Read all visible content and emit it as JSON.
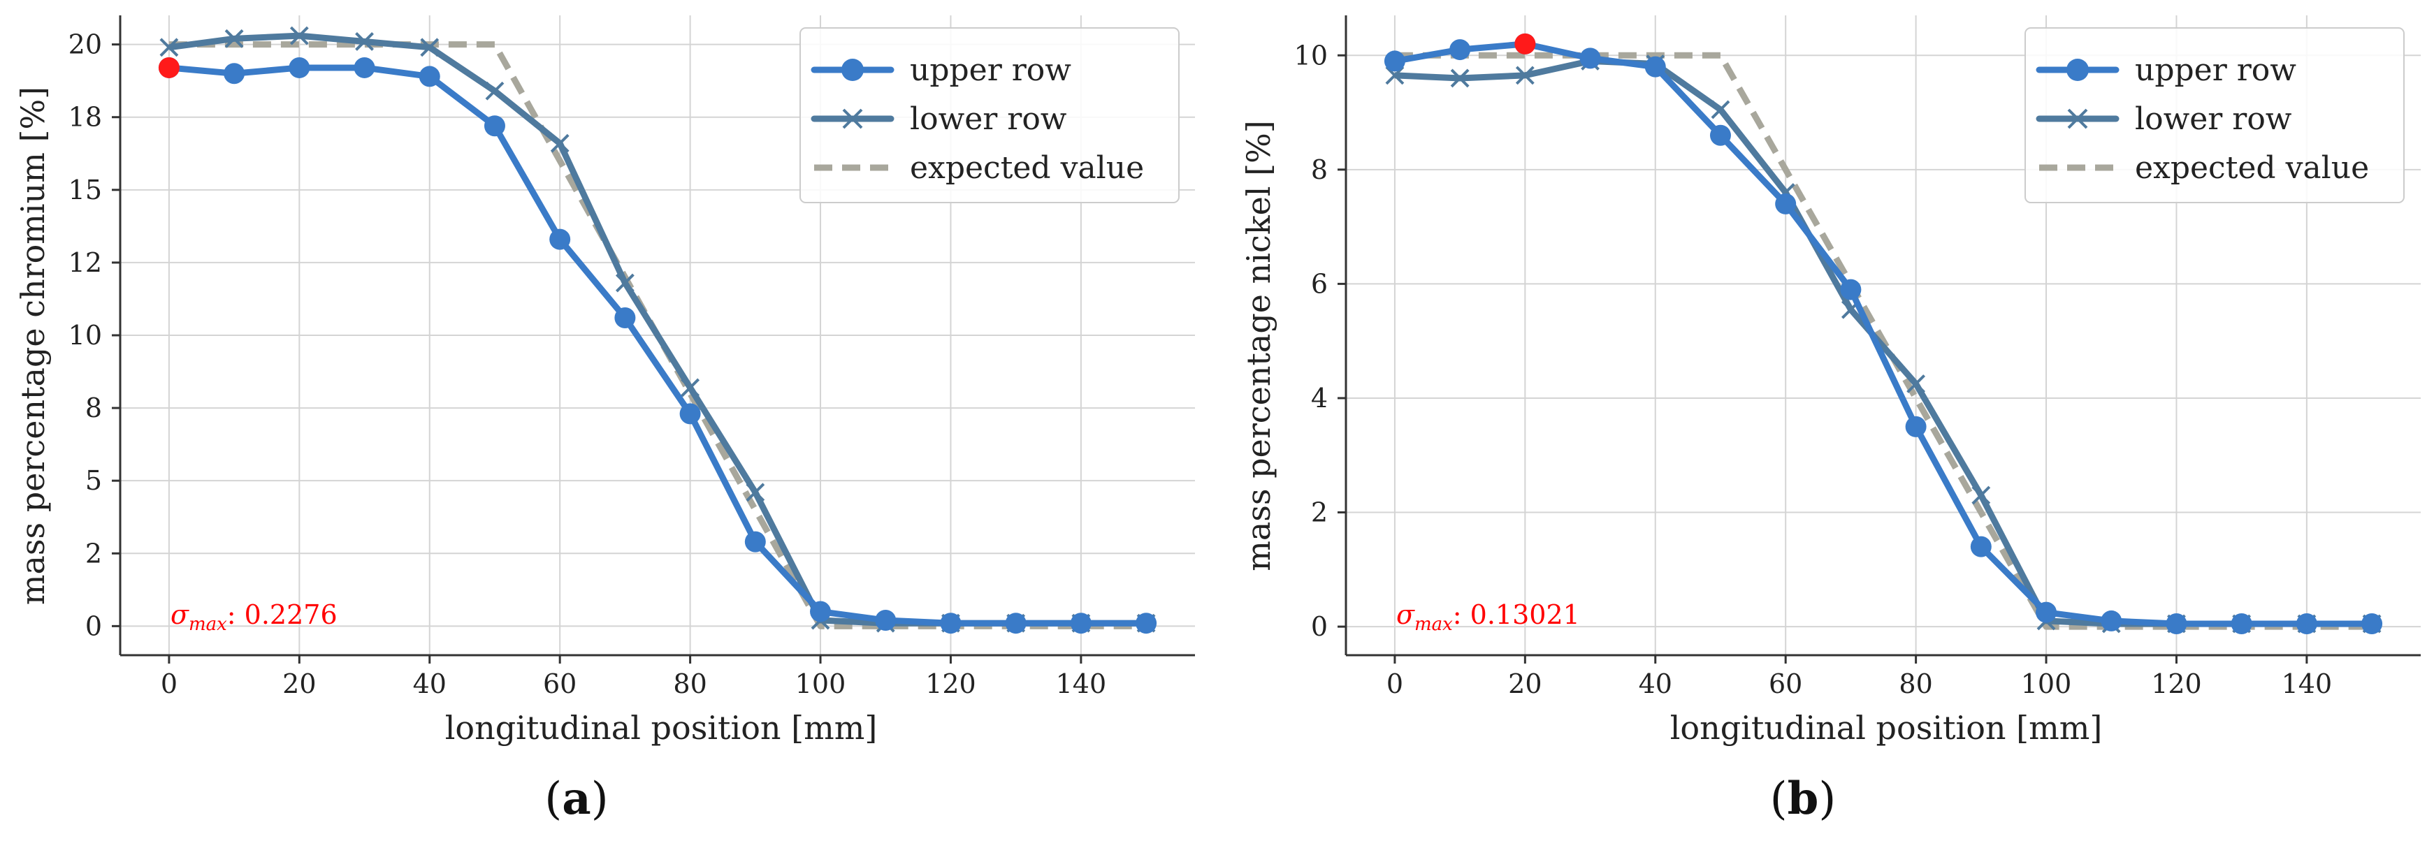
{
  "colors": {
    "upper": "#3a7bc8",
    "lower": "#4f7a9e",
    "expected": "#a8a79c",
    "grid": "#d4d4d4",
    "axis": "#333333",
    "highlight": "#ff1a1a",
    "annotation": "#ff0000"
  },
  "chart_data": [
    {
      "type": "line",
      "panel": "a",
      "panel_open": "(",
      "panel_label": "a",
      "panel_close": ")",
      "xlabel": "longitudinal position [mm]",
      "ylabel": "mass percentage chromium [%]",
      "xlim": [
        -7.5,
        157.5
      ],
      "ylim": [
        -1.0,
        21.0
      ],
      "xticks": [
        0,
        20,
        40,
        60,
        80,
        100,
        120,
        140
      ],
      "xtick_labels": [
        "0",
        "20",
        "40",
        "60",
        "80",
        "100",
        "120",
        "140"
      ],
      "yticks": [
        0,
        2.5,
        5,
        7.5,
        10,
        12.5,
        15,
        17.5,
        20
      ],
      "ytick_labels": [
        "0",
        "2",
        "5",
        "8",
        "10",
        "12",
        "15",
        "18",
        "20"
      ],
      "x": [
        0,
        10,
        20,
        30,
        40,
        50,
        60,
        70,
        80,
        90,
        100,
        110,
        120,
        130,
        140,
        150
      ],
      "series": [
        {
          "name": "upper row",
          "values": [
            19.2,
            19.0,
            19.2,
            19.2,
            18.9,
            17.2,
            13.3,
            10.6,
            7.3,
            2.9,
            0.5,
            0.2,
            0.1,
            0.1,
            0.1,
            0.1
          ]
        },
        {
          "name": "lower row",
          "values": [
            19.9,
            20.2,
            20.3,
            20.1,
            19.9,
            18.4,
            16.6,
            11.8,
            8.2,
            4.6,
            0.2,
            0.1,
            0.1,
            0.1,
            0.1,
            0.1
          ]
        },
        {
          "name": "expected value",
          "x": [
            0,
            50,
            100,
            150
          ],
          "values": [
            20.0,
            20.0,
            0.0,
            0.0
          ]
        }
      ],
      "highlight_point": {
        "x": 0,
        "y": 19.2
      },
      "legend_position": "top-right",
      "annotation": {
        "symbol": "σ",
        "subscript": "max",
        "separator": ": ",
        "value": "0.2276"
      }
    },
    {
      "type": "line",
      "panel": "b",
      "panel_open": "(",
      "panel_label": "b",
      "panel_close": ")",
      "xlabel": "longitudinal position [mm]",
      "ylabel": "mass percentage nickel [%]",
      "xlim": [
        -7.5,
        157.5
      ],
      "ylim": [
        -0.5,
        10.7
      ],
      "xticks": [
        0,
        20,
        40,
        60,
        80,
        100,
        120,
        140
      ],
      "xtick_labels": [
        "0",
        "20",
        "40",
        "60",
        "80",
        "100",
        "120",
        "140"
      ],
      "yticks": [
        0,
        2,
        4,
        6,
        8,
        10
      ],
      "ytick_labels": [
        "0",
        "2",
        "4",
        "6",
        "8",
        "10"
      ],
      "x": [
        0,
        10,
        20,
        30,
        40,
        50,
        60,
        70,
        80,
        90,
        100,
        110,
        120,
        130,
        140,
        150
      ],
      "series": [
        {
          "name": "upper row",
          "values": [
            9.9,
            10.1,
            10.2,
            9.95,
            9.8,
            8.6,
            7.4,
            5.9,
            3.5,
            1.4,
            0.25,
            0.1,
            0.05,
            0.05,
            0.05,
            0.05
          ]
        },
        {
          "name": "lower row",
          "values": [
            9.65,
            9.6,
            9.65,
            9.9,
            9.85,
            9.05,
            7.6,
            5.55,
            4.25,
            2.3,
            0.1,
            0.05,
            0.05,
            0.05,
            0.05,
            0.05
          ]
        },
        {
          "name": "expected value",
          "x": [
            0,
            50,
            100,
            150
          ],
          "values": [
            10.0,
            10.0,
            0.0,
            0.0
          ]
        }
      ],
      "highlight_point": {
        "x": 20,
        "y": 10.2
      },
      "legend_position": "top-right",
      "annotation": {
        "symbol": "σ",
        "subscript": "max",
        "separator": ": ",
        "value": "0.13021"
      }
    }
  ]
}
